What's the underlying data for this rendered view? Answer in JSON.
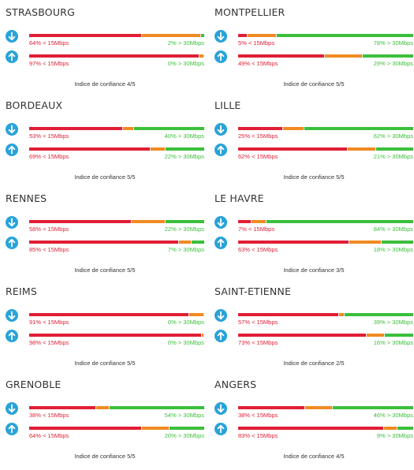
{
  "colors": {
    "slow": "#e01e35",
    "mid": "#f08a22",
    "fast": "#3bbf3b",
    "icon": "#29a3d9"
  },
  "icons": {
    "download": "download-arrow-icon",
    "upload": "upload-arrow-icon"
  },
  "cities": [
    {
      "name": "STRASBOURG",
      "download": {
        "slow": 64,
        "fast": 2,
        "slow_label": "64% < 15Mbps",
        "fast_label": "2% > 30Mbps"
      },
      "upload": {
        "slow": 97,
        "fast": 0,
        "slow_label": "97% < 15Mbps",
        "fast_label": "0% > 30Mbps"
      },
      "confidence": "Indice de confiance 4/5"
    },
    {
      "name": "MONTPELLIER",
      "download": {
        "slow": 5,
        "fast": 78,
        "slow_label": "5% < 15Mbps",
        "fast_label": "78% > 30Mbps"
      },
      "upload": {
        "slow": 49,
        "fast": 29,
        "slow_label": "49% < 15Mbps",
        "fast_label": "29% > 30Mbps"
      },
      "confidence": "Indice de confiance 5/5"
    },
    {
      "name": "BORDEAUX",
      "download": {
        "slow": 53,
        "fast": 40,
        "slow_label": "53% < 15Mbps",
        "fast_label": "40% > 30Mbps"
      },
      "upload": {
        "slow": 69,
        "fast": 22,
        "slow_label": "69% < 15Mbps",
        "fast_label": "22% > 30Mbps"
      },
      "confidence": "Indice de confiance 5/5"
    },
    {
      "name": "LILLE",
      "download": {
        "slow": 25,
        "fast": 62,
        "slow_label": "25% < 15Mbps",
        "fast_label": "62% > 30Mbps"
      },
      "upload": {
        "slow": 62,
        "fast": 21,
        "slow_label": "62% < 15Mbps",
        "fast_label": "21% > 30Mbps"
      },
      "confidence": "Indice de confiance 5/5"
    },
    {
      "name": "RENNES",
      "download": {
        "slow": 58,
        "fast": 22,
        "slow_label": "58% < 15Mbps",
        "fast_label": "22% > 30Mbps"
      },
      "upload": {
        "slow": 85,
        "fast": 7,
        "slow_label": "85% < 15Mbps",
        "fast_label": "7% > 30Mbps"
      },
      "confidence": "Indice de confiance 5/5"
    },
    {
      "name": "LE HAVRE",
      "download": {
        "slow": 7,
        "fast": 84,
        "slow_label": "7% < 15Mbps",
        "fast_label": "84% > 30Mbps"
      },
      "upload": {
        "slow": 63,
        "fast": 18,
        "slow_label": "63% < 15Mbps",
        "fast_label": "18% > 30Mbps"
      },
      "confidence": "Indice de confiance 3/5"
    },
    {
      "name": "REIMS",
      "download": {
        "slow": 91,
        "fast": 0,
        "slow_label": "91% < 15Mbps",
        "fast_label": "0% > 30Mbps"
      },
      "upload": {
        "slow": 98,
        "fast": 0,
        "slow_label": "98% < 15Mbps",
        "fast_label": "0% > 30Mbps"
      },
      "confidence": "Indice de confiance 5/5"
    },
    {
      "name": "SAINT-ETIENNE",
      "download": {
        "slow": 57,
        "fast": 39,
        "slow_label": "57% < 15Mbps",
        "fast_label": "39% > 30Mbps"
      },
      "upload": {
        "slow": 73,
        "fast": 16,
        "slow_label": "73% < 15Mbps",
        "fast_label": "16% > 30Mbps"
      },
      "confidence": "Indice de confiance 2/5"
    },
    {
      "name": "GRENOBLE",
      "download": {
        "slow": 38,
        "fast": 54,
        "slow_label": "38% < 15Mbps",
        "fast_label": "54% > 30Mbps"
      },
      "upload": {
        "slow": 64,
        "fast": 20,
        "slow_label": "64% < 15Mbps",
        "fast_label": "20% > 30Mbps"
      },
      "confidence": "Indice de confiance 5/5"
    },
    {
      "name": "ANGERS",
      "download": {
        "slow": 38,
        "fast": 46,
        "slow_label": "38% < 15Mbps",
        "fast_label": "46% > 30Mbps"
      },
      "upload": {
        "slow": 83,
        "fast": 9,
        "slow_label": "83% < 15Mbps",
        "fast_label": "9% > 30Mbps"
      },
      "confidence": "Indice de confiance 4/5"
    }
  ]
}
